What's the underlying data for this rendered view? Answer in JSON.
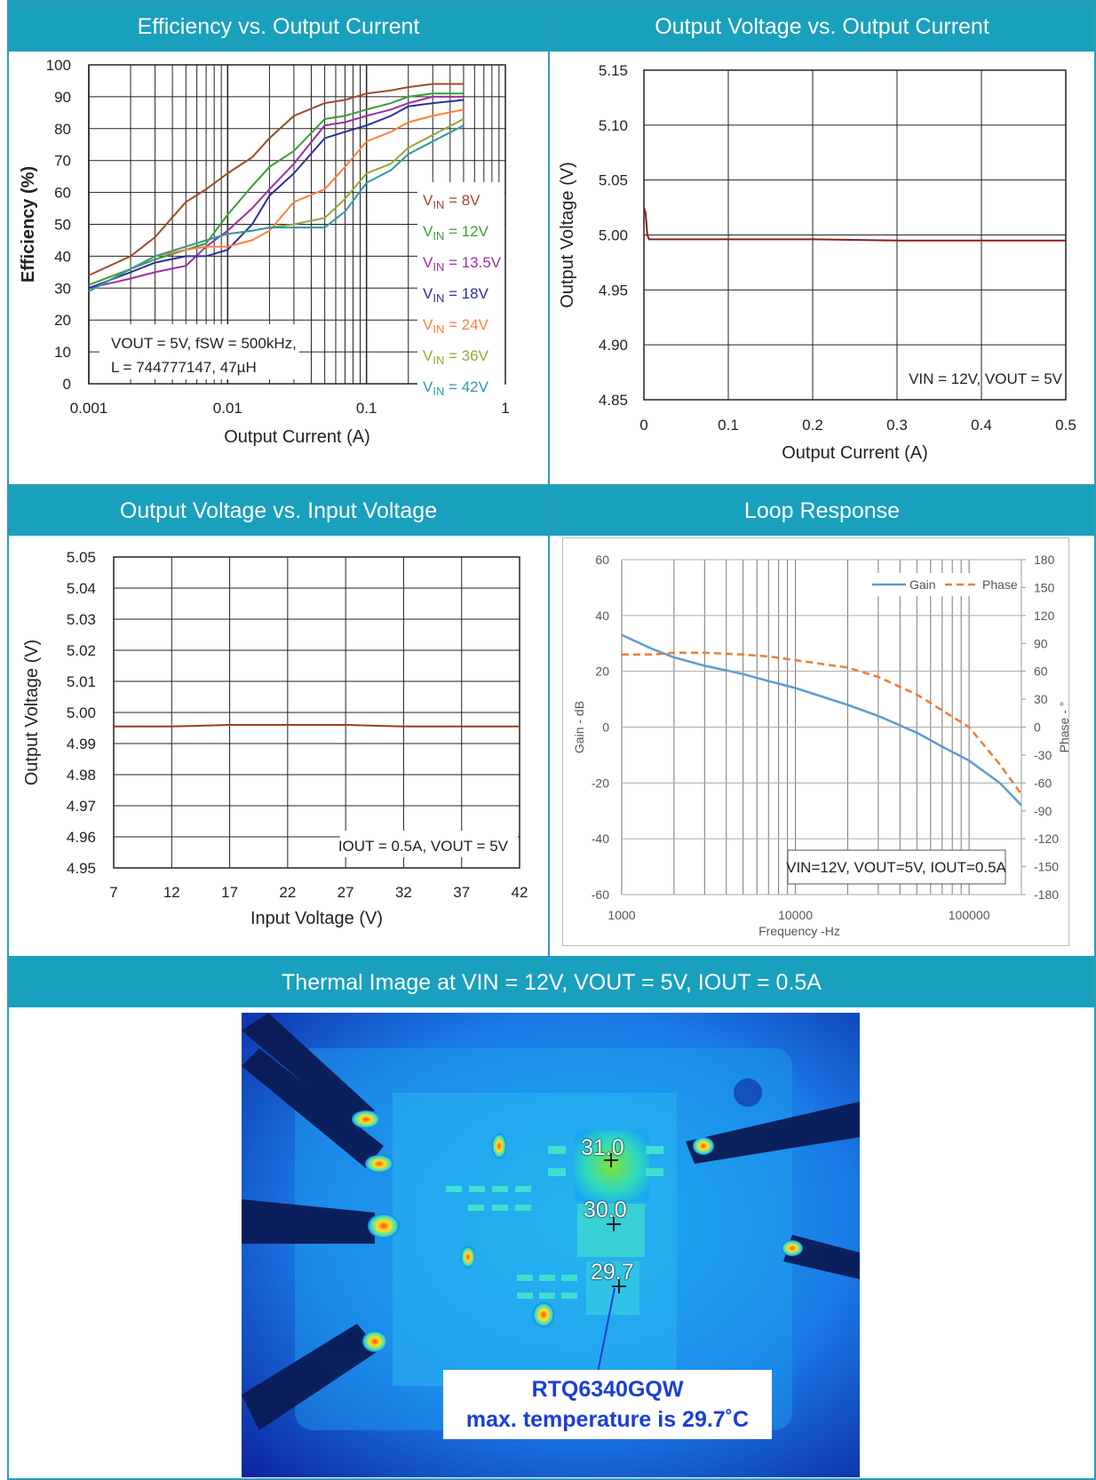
{
  "panels": {
    "efficiency_title": "Efficiency vs. Output Current",
    "vout_iout_title": "Output Voltage vs. Output Current",
    "vout_vin_title": "Output Voltage vs. Input Voltage",
    "loop_title": "Loop Response",
    "thermal_title": "Thermal Image at VIN = 12V, VOUT = 5V, IOUT = 0.5A"
  },
  "thermal": {
    "callout_line1": "RTQ6340GQW",
    "callout_line2": "max. temperature is 29.7˚C",
    "spot1": "31.0",
    "spot2": "30.0",
    "spot3": "29.7"
  },
  "chart_data": [
    {
      "type": "line",
      "title": "Efficiency vs. Output Current",
      "xlabel": "Output Current (A)",
      "ylabel": "Efficiency (%)",
      "xscale": "log",
      "xlim": [
        0.001,
        1
      ],
      "ylim": [
        0,
        100
      ],
      "xticks": [
        "0.001",
        "0.01",
        "0.1",
        "1"
      ],
      "yticks": [
        "0",
        "10",
        "20",
        "30",
        "40",
        "50",
        "60",
        "70",
        "80",
        "90",
        "100"
      ],
      "grid": true,
      "annotation": [
        "VOUT = 5V, fSW = 500kHz,",
        "L = 744777147, 47µH"
      ],
      "legend_position": "right",
      "x": [
        0.001,
        0.002,
        0.003,
        0.005,
        0.007,
        0.01,
        0.015,
        0.02,
        0.03,
        0.05,
        0.07,
        0.1,
        0.15,
        0.2,
        0.3,
        0.5
      ],
      "series": [
        {
          "name": "VIN = 8V",
          "color": "#a2492a",
          "values": [
            34,
            40,
            46,
            57,
            61,
            66,
            71,
            77,
            84,
            88,
            89,
            91,
            92,
            93,
            94,
            94
          ]
        },
        {
          "name": "VIN = 12V",
          "color": "#3d9a3a",
          "values": [
            31,
            36,
            39,
            42,
            44,
            53,
            62,
            68,
            73,
            83,
            84,
            86,
            88,
            90,
            91,
            91
          ]
        },
        {
          "name": "VIN = 13.5V",
          "color": "#9d2ea4",
          "values": [
            30,
            33,
            35,
            37,
            43,
            48,
            55,
            61,
            69,
            81,
            82,
            84,
            86,
            88,
            90,
            90
          ]
        },
        {
          "name": "VIN = 18V",
          "color": "#2e2f9a",
          "values": [
            30,
            35,
            38,
            40,
            40,
            42,
            50,
            59,
            66,
            77,
            79,
            81,
            84,
            87,
            88,
            89
          ]
        },
        {
          "name": "VIN = 24V",
          "color": "#ff7f3a",
          "values": [
            29,
            36,
            40,
            42,
            43,
            43,
            45,
            48,
            57,
            61,
            68,
            76,
            79,
            82,
            84,
            86
          ]
        },
        {
          "name": "VIN = 36V",
          "color": "#9aa33a",
          "values": [
            29,
            36,
            40,
            43,
            45,
            47,
            48,
            49,
            50,
            52,
            58,
            66,
            69,
            74,
            78,
            83
          ]
        },
        {
          "name": "VIN = 42V",
          "color": "#2f9aa2",
          "values": [
            29,
            36,
            40,
            43,
            45,
            47,
            48,
            49,
            49,
            49,
            54,
            63,
            67,
            72,
            76,
            81
          ]
        }
      ]
    },
    {
      "type": "line",
      "title": "Output Voltage vs. Output Current",
      "xlabel": "Output Current (A)",
      "ylabel": "Output Voltage (V)",
      "xlim": [
        0,
        0.5
      ],
      "ylim": [
        4.85,
        5.15
      ],
      "xticks": [
        "0",
        "0.1",
        "0.2",
        "0.3",
        "0.4",
        "0.5"
      ],
      "yticks": [
        "4.85",
        "4.90",
        "4.95",
        "5.00",
        "5.05",
        "5.10",
        "5.15"
      ],
      "grid": true,
      "annotation": "VIN = 12V, VOUT = 5V",
      "series": [
        {
          "color": "#8b1d1d",
          "x": [
            0,
            0.002,
            0.004,
            0.006,
            0.01,
            0.1,
            0.2,
            0.3,
            0.4,
            0.5
          ],
          "values": [
            5.025,
            5.02,
            5.0,
            4.996,
            4.996,
            4.996,
            4.996,
            4.995,
            4.995,
            4.995
          ]
        }
      ]
    },
    {
      "type": "line",
      "title": "Output Voltage vs. Input Voltage",
      "xlabel": "Input Voltage (V)",
      "ylabel": "Output Voltage (V)",
      "xlim": [
        7,
        42
      ],
      "ylim": [
        4.95,
        5.05
      ],
      "xticks": [
        "7",
        "12",
        "17",
        "22",
        "27",
        "32",
        "37",
        "42"
      ],
      "yticks": [
        "4.95",
        "4.96",
        "4.97",
        "4.98",
        "4.99",
        "5.00",
        "5.01",
        "5.02",
        "5.03",
        "5.04",
        "5.05"
      ],
      "grid": true,
      "annotation": "IOUT = 0.5A, VOUT = 5V",
      "series": [
        {
          "color": "#a23a1d",
          "x": [
            7,
            12,
            17,
            22,
            27,
            32,
            37,
            42
          ],
          "values": [
            4.9955,
            4.9955,
            4.996,
            4.996,
            4.996,
            4.9955,
            4.9955,
            4.9955
          ]
        }
      ]
    },
    {
      "type": "line",
      "title": "Loop Response",
      "xlabel": "Frequency -Hz",
      "ylabel": "Gain - dB",
      "y2label": "Phase - °",
      "xscale": "log",
      "xlim": [
        1000,
        200000
      ],
      "ylim": [
        -60,
        60
      ],
      "y2lim": [
        -180,
        180
      ],
      "xticks": [
        "1000",
        "10000",
        "100000"
      ],
      "yticks": [
        "-60",
        "-40",
        "-20",
        "0",
        "20",
        "40",
        "60"
      ],
      "y2ticks": [
        "-180",
        "-150",
        "-120",
        "-90",
        "-60",
        "-30",
        "0",
        "30",
        "60",
        "90",
        "120",
        "150",
        "180"
      ],
      "grid": true,
      "legend_position": "top-right",
      "annotation": "VIN=12V, VOUT=5V, IOUT=0.5A",
      "x": [
        1000,
        1500,
        2000,
        3000,
        5000,
        7000,
        10000,
        20000,
        30000,
        50000,
        70000,
        100000,
        150000,
        200000
      ],
      "series": [
        {
          "name": "Gain",
          "color": "#5b9bd5",
          "axis": "left",
          "values": [
            33,
            28,
            25,
            22,
            19,
            16.5,
            14,
            8,
            4,
            -2,
            -7,
            -12,
            -20,
            -28
          ]
        },
        {
          "name": "Phase",
          "color": "#ed7d31",
          "axis": "right",
          "dashed": true,
          "values": [
            78,
            78,
            80,
            80,
            78,
            76,
            72,
            64,
            54,
            35,
            18,
            0,
            -40,
            -72
          ]
        }
      ]
    }
  ]
}
